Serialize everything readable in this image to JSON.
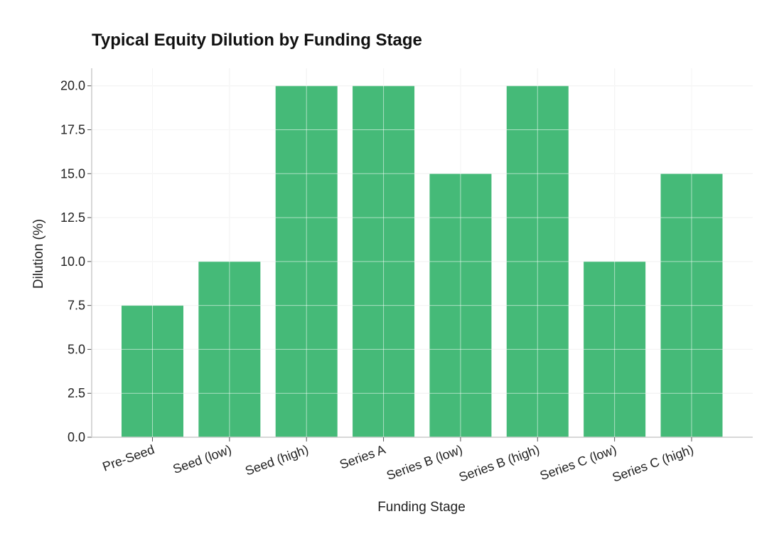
{
  "chart_data": {
    "type": "bar",
    "title": "Typical Equity Dilution by Funding Stage",
    "xlabel": "Funding Stage",
    "ylabel": "Dilution (%)",
    "categories": [
      "Pre-Seed",
      "Seed (low)",
      "Seed (high)",
      "Series A",
      "Series B (low)",
      "Series B (high)",
      "Series C (low)",
      "Series C (high)"
    ],
    "values": [
      7.5,
      10,
      20,
      20,
      15,
      20,
      10,
      15
    ],
    "ylim": [
      0,
      21
    ],
    "yticks": [
      "0.0",
      "2.5",
      "5.0",
      "7.5",
      "10.0",
      "12.5",
      "15.0",
      "17.5",
      "20.0"
    ],
    "grid": true,
    "bar_color": "#45BA78",
    "grid_color": "#e6e6e6",
    "axis_color": "#cccccc",
    "legend": "none"
  }
}
